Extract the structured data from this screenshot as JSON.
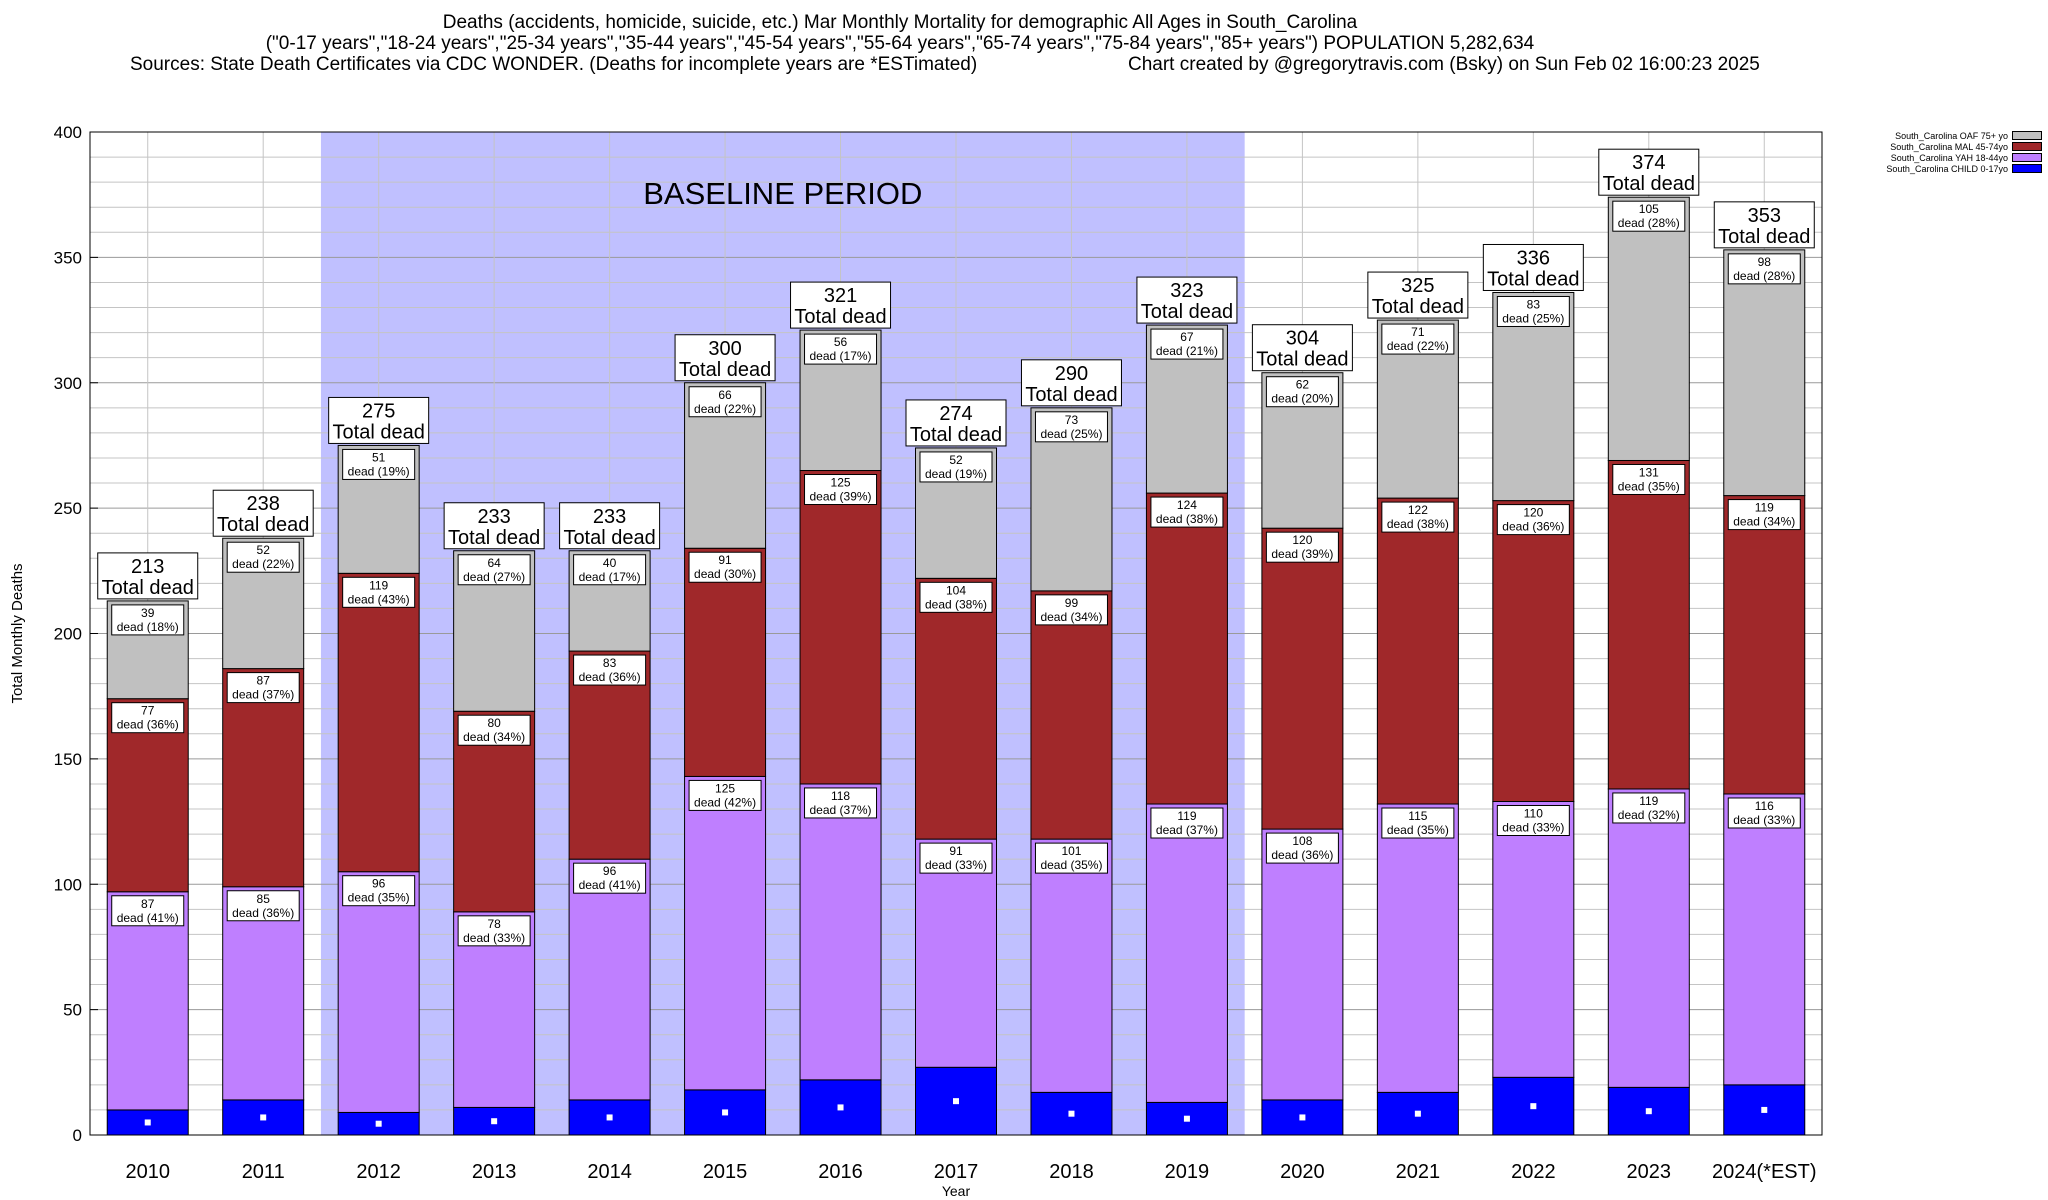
{
  "title": {
    "line1": "Deaths (accidents, homicide, suicide, etc.) Mar Monthly Mortality for demographic All Ages in South_Carolina",
    "line2": "(\"0-17 years\",\"18-24 years\",\"25-34 years\",\"35-44 years\",\"45-54 years\",\"55-64 years\",\"65-74 years\",\"75-84 years\",\"85+ years\") POPULATION 5,282,634",
    "line3_left": "Sources: State Death Certificates via CDC WONDER. (Deaths for incomplete years are *ESTimated)",
    "line3_right": "Chart created by @gregorytravis.com (Bsky) on Sun Feb 02 16:00:23 2025"
  },
  "chart_data": {
    "type": "bar",
    "stacked": true,
    "xlabel": "Year",
    "ylabel": "Total Monthly Deaths",
    "ylim": [
      0,
      400
    ],
    "yticks": [
      0,
      50,
      100,
      150,
      200,
      250,
      300,
      350,
      400
    ],
    "minor_grid_step": 10,
    "grid": true,
    "categories": [
      "2010",
      "2011",
      "2012",
      "2013",
      "2014",
      "2015",
      "2016",
      "2017",
      "2018",
      "2019",
      "2020",
      "2021",
      "2022",
      "2023",
      "2024(*EST)"
    ],
    "series": [
      {
        "name": "South_Carolina CHILD 0-17yo",
        "color": "#0000ff",
        "values": [
          10,
          14,
          9,
          11,
          14,
          18,
          22,
          27,
          17,
          13,
          14,
          17,
          23,
          19,
          20
        ]
      },
      {
        "name": "South_Carolina YAH 18-44yo",
        "color": "#bf7fff",
        "values": [
          87,
          85,
          96,
          78,
          96,
          125,
          118,
          91,
          101,
          119,
          108,
          115,
          110,
          119,
          116
        ],
        "labels": [
          "dead (41%)",
          "dead (36%)",
          "dead (35%)",
          "dead (33%)",
          "dead (41%)",
          "dead (42%)",
          "dead (37%)",
          "dead (33%)",
          "dead (35%)",
          "dead (37%)",
          "dead (36%)",
          "dead (35%)",
          "dead (33%)",
          "dead (32%)",
          "dead (33%)"
        ]
      },
      {
        "name": "South_Carolina MAL 45-74yo",
        "color": "#a0282a",
        "values": [
          77,
          87,
          119,
          80,
          83,
          91,
          125,
          104,
          99,
          124,
          120,
          122,
          120,
          131,
          119
        ],
        "labels": [
          "dead (36%)",
          "dead (37%)",
          "dead (43%)",
          "dead (34%)",
          "dead (36%)",
          "dead (30%)",
          "dead (39%)",
          "dead (38%)",
          "dead (34%)",
          "dead (38%)",
          "dead (39%)",
          "dead (38%)",
          "dead (36%)",
          "dead (35%)",
          "dead (34%)"
        ]
      },
      {
        "name": "South_Carolina OAF 75+ yo",
        "color": "#c0c0c0",
        "values": [
          39,
          52,
          51,
          64,
          40,
          66,
          56,
          52,
          73,
          67,
          62,
          71,
          83,
          105,
          98
        ],
        "labels": [
          "dead (18%)",
          "dead (22%)",
          "dead (19%)",
          "dead (27%)",
          "dead (17%)",
          "dead (22%)",
          "dead (17%)",
          "dead (19%)",
          "dead (25%)",
          "dead (21%)",
          "dead (20%)",
          "dead (22%)",
          "dead (25%)",
          "dead (28%)",
          "dead (28%)"
        ]
      }
    ],
    "totals": [
      213,
      238,
      275,
      233,
      233,
      300,
      321,
      274,
      290,
      323,
      304,
      325,
      336,
      374,
      353
    ],
    "total_label": "Total dead",
    "baseline": {
      "label": "BASELINE PERIOD",
      "from": "2012",
      "to": "2019",
      "color": "#c0c0ff"
    },
    "legend_position": "top-right",
    "legend_order": [
      "South_Carolina OAF 75+ yo",
      "South_Carolina MAL 45-74yo",
      "South_Carolina YAH 18-44yo",
      "South_Carolina CHILD 0-17yo"
    ]
  }
}
